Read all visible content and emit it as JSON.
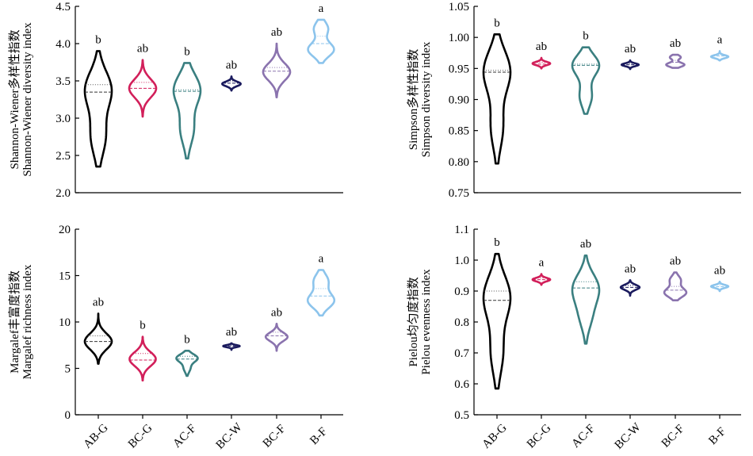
{
  "colors": {
    "AB-G": "#000000",
    "BC-G": "#d21f5a",
    "AC-F": "#3a7f80",
    "BC-W": "#1b1b5e",
    "BC-F": "#8a73ae",
    "B-F": "#8cc4ec"
  },
  "chart_data": [
    {
      "type": "violin",
      "panel": "top-left",
      "ylabel_line1": "Shannon-Wiener多样性指数",
      "ylabel_line2": "Shannon-Wiener diversity index",
      "categories": [
        "AB-G",
        "BC-G",
        "AC-F",
        "BC-W",
        "BC-F",
        "B-F"
      ],
      "ylim": [
        2.0,
        4.5
      ],
      "yticks": [
        2.0,
        2.5,
        3.0,
        3.5,
        4.0,
        4.5
      ],
      "ytick_labels": [
        "2.0",
        "2.5",
        "3.0",
        "3.5",
        "4.0",
        "4.5"
      ],
      "show_xticks": false,
      "violins": [
        {
          "category": "AB-G",
          "min": 2.35,
          "max": 3.9,
          "median": 3.35,
          "q3": 3.45,
          "peaks": [
            [
              2.75,
              0.55
            ],
            [
              3.38,
              1.0
            ]
          ],
          "sig": "b"
        },
        {
          "category": "BC-G",
          "min": 3.02,
          "max": 3.78,
          "median": 3.4,
          "q3": 3.48,
          "peaks": [
            [
              3.4,
              1.0
            ]
          ],
          "sig": "ab"
        },
        {
          "category": "AC-F",
          "min": 2.46,
          "max": 3.74,
          "median": 3.36,
          "q3": 3.38,
          "peaks": [
            [
              2.85,
              0.5
            ],
            [
              3.38,
              1.0
            ]
          ],
          "sig": "b"
        },
        {
          "category": "BC-W",
          "min": 3.37,
          "max": 3.56,
          "median": 3.47,
          "q3": 3.5,
          "peaks": [
            [
              3.46,
              1.0
            ]
          ],
          "sig": "ab"
        },
        {
          "category": "BC-F",
          "min": 3.28,
          "max": 4.0,
          "median": 3.63,
          "q3": 3.68,
          "peaks": [
            [
              3.62,
              1.0
            ]
          ],
          "sig": "ab"
        },
        {
          "category": "B-F",
          "min": 3.74,
          "max": 4.32,
          "median": 4.0,
          "q3": 4.1,
          "peaks": [
            [
              3.92,
              1.0
            ],
            [
              4.2,
              0.55
            ]
          ],
          "sig": "a"
        }
      ]
    },
    {
      "type": "violin",
      "panel": "top-right",
      "ylabel_line1": "Simpson多样性指数",
      "ylabel_line2": "Simpson diversity index",
      "categories": [
        "AB-G",
        "BC-G",
        "AC-F",
        "BC-W",
        "BC-F",
        "B-F"
      ],
      "ylim": [
        0.75,
        1.05
      ],
      "yticks": [
        0.75,
        0.8,
        0.85,
        0.9,
        0.95,
        1.0,
        1.05
      ],
      "ytick_labels": [
        "0.75",
        "0.80",
        "0.85",
        "0.90",
        "0.95",
        "1.00",
        "1.05"
      ],
      "show_xticks": false,
      "violins": [
        {
          "category": "AB-G",
          "min": 0.797,
          "max": 1.005,
          "median": 0.944,
          "q3": 0.947,
          "peaks": [
            [
              0.855,
              0.45
            ],
            [
              0.945,
              1.0
            ]
          ],
          "sig": "b"
        },
        {
          "category": "BC-G",
          "min": 0.95,
          "max": 0.967,
          "median": 0.957,
          "q3": 0.96,
          "peaks": [
            [
              0.958,
              1.0
            ]
          ],
          "sig": "ab"
        },
        {
          "category": "AC-F",
          "min": 0.877,
          "max": 0.984,
          "median": 0.955,
          "q3": 0.957,
          "peaks": [
            [
              0.905,
              0.45
            ],
            [
              0.955,
              1.0
            ]
          ],
          "sig": "b"
        },
        {
          "category": "BC-W",
          "min": 0.949,
          "max": 0.963,
          "median": 0.956,
          "q3": 0.958,
          "peaks": [
            [
              0.956,
              1.0
            ]
          ],
          "sig": "ab"
        },
        {
          "category": "BC-F",
          "min": 0.951,
          "max": 0.972,
          "median": 0.96,
          "q3": 0.963,
          "peaks": [
            [
              0.956,
              1.0
            ],
            [
              0.968,
              0.6
            ]
          ],
          "sig": "ab"
        },
        {
          "category": "B-F",
          "min": 0.963,
          "max": 0.978,
          "median": 0.97,
          "q3": 0.972,
          "peaks": [
            [
              0.969,
              1.0
            ]
          ],
          "sig": "a"
        }
      ]
    },
    {
      "type": "violin",
      "panel": "bottom-left",
      "ylabel_line1": "Margalef丰富度指数",
      "ylabel_line2": "Margalef richness index",
      "categories": [
        "AB-G",
        "BC-G",
        "AC-F",
        "BC-W",
        "BC-F",
        "B-F"
      ],
      "ylim": [
        0,
        20
      ],
      "yticks": [
        0,
        5,
        10,
        15,
        20
      ],
      "ytick_labels": [
        "0",
        "5",
        "10",
        "15",
        "20"
      ],
      "show_xticks": true,
      "violins": [
        {
          "category": "AB-G",
          "min": 5.5,
          "max": 10.9,
          "median": 7.9,
          "q3": 8.5,
          "peaks": [
            [
              7.9,
              1.0
            ]
          ],
          "sig": "ab"
        },
        {
          "category": "BC-G",
          "min": 3.7,
          "max": 8.4,
          "median": 5.9,
          "q3": 6.6,
          "peaks": [
            [
              6.0,
              1.0
            ]
          ],
          "sig": "b"
        },
        {
          "category": "AC-F",
          "min": 4.2,
          "max": 6.9,
          "median": 6.0,
          "q3": 6.3,
          "peaks": [
            [
              5.0,
              0.3
            ],
            [
              6.1,
              1.0
            ]
          ],
          "sig": "b"
        },
        {
          "category": "BC-W",
          "min": 7.0,
          "max": 7.7,
          "median": 7.4,
          "q3": 7.5,
          "peaks": [
            [
              7.4,
              1.0
            ]
          ],
          "sig": "ab"
        },
        {
          "category": "BC-F",
          "min": 6.9,
          "max": 9.8,
          "median": 8.5,
          "q3": 8.9,
          "peaks": [
            [
              8.4,
              1.0
            ]
          ],
          "sig": "ab"
        },
        {
          "category": "B-F",
          "min": 10.7,
          "max": 15.6,
          "median": 12.8,
          "q3": 13.6,
          "peaks": [
            [
              12.3,
              1.0
            ],
            [
              14.4,
              0.55
            ]
          ],
          "sig": "a"
        }
      ]
    },
    {
      "type": "violin",
      "panel": "bottom-right",
      "ylabel_line1": "Pielou均匀度指数",
      "ylabel_line2": "Pielou evenness index",
      "categories": [
        "AB-G",
        "BC-G",
        "AC-F",
        "BC-W",
        "BC-F",
        "B-F"
      ],
      "ylim": [
        0.5,
        1.1
      ],
      "yticks": [
        0.5,
        0.6,
        0.7,
        0.8,
        0.9,
        1.0,
        1.1
      ],
      "ytick_labels": [
        "0.5",
        "0.6",
        "0.7",
        "0.8",
        "0.9",
        "1.0",
        "1.1"
      ],
      "show_xticks": true,
      "violins": [
        {
          "category": "AB-G",
          "min": 0.585,
          "max": 1.02,
          "median": 0.87,
          "q3": 0.9,
          "peaks": [
            [
              0.7,
              0.45
            ],
            [
              0.88,
              1.0
            ]
          ],
          "sig": "b"
        },
        {
          "category": "BC-G",
          "min": 0.92,
          "max": 0.955,
          "median": 0.937,
          "q3": 0.942,
          "peaks": [
            [
              0.937,
              1.0
            ]
          ],
          "sig": "a"
        },
        {
          "category": "AC-F",
          "min": 0.73,
          "max": 1.015,
          "median": 0.91,
          "q3": 0.93,
          "peaks": [
            [
              0.82,
              0.45
            ],
            [
              0.91,
              1.0
            ]
          ],
          "sig": "ab"
        },
        {
          "category": "BC-W",
          "min": 0.885,
          "max": 0.935,
          "median": 0.912,
          "q3": 0.918,
          "peaks": [
            [
              0.912,
              1.0
            ]
          ],
          "sig": "ab"
        },
        {
          "category": "BC-F",
          "min": 0.87,
          "max": 0.96,
          "median": 0.903,
          "q3": 0.915,
          "peaks": [
            [
              0.895,
              1.0
            ],
            [
              0.935,
              0.5
            ]
          ],
          "sig": "ab"
        },
        {
          "category": "B-F",
          "min": 0.9,
          "max": 0.93,
          "median": 0.914,
          "q3": 0.92,
          "peaks": [
            [
              0.915,
              1.0
            ]
          ],
          "sig": "ab"
        }
      ]
    }
  ]
}
